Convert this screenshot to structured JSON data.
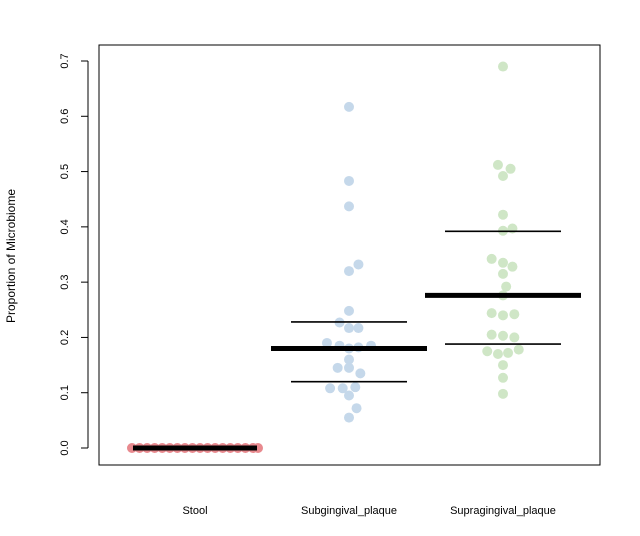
{
  "chart_data": {
    "type": "scatter",
    "subtype": "beeswarm with median and quartile lines",
    "title": "",
    "xlabel": "",
    "ylabel": "Proportion of Microbiome",
    "ylim": [
      -0.02,
      0.72
    ],
    "yticks": [
      0.0,
      0.1,
      0.2,
      0.3,
      0.4,
      0.5,
      0.6,
      0.7
    ],
    "ytick_labels": [
      "0.0",
      "0.1",
      "0.2",
      "0.3",
      "0.4",
      "0.5",
      "0.6",
      "0.7"
    ],
    "categories": [
      "Stool",
      "Subgingival_plaque",
      "Supragingival_plaque"
    ],
    "grid": false,
    "legend": "none",
    "colors": {
      "Stool": "#e8898e",
      "Subgingival_plaque": "#c5d8ea",
      "Supragingival_plaque": "#cfe6c6",
      "summary_lines": "#000000"
    },
    "series": [
      {
        "category": "Stool",
        "median": 0.0,
        "q1": 0.0,
        "q3": 0.0,
        "points": [
          {
            "y": 0.0,
            "offset": -1.0
          },
          {
            "y": 0.0,
            "offset": -0.88
          },
          {
            "y": 0.0,
            "offset": -0.76
          },
          {
            "y": 0.0,
            "offset": -0.64
          },
          {
            "y": 0.0,
            "offset": -0.52
          },
          {
            "y": 0.0,
            "offset": -0.4
          },
          {
            "y": 0.0,
            "offset": -0.28
          },
          {
            "y": 0.0,
            "offset": -0.16
          },
          {
            "y": 0.0,
            "offset": -0.04
          },
          {
            "y": 0.0,
            "offset": 0.08
          },
          {
            "y": 0.0,
            "offset": 0.2
          },
          {
            "y": 0.0,
            "offset": 0.32
          },
          {
            "y": 0.0,
            "offset": 0.44
          },
          {
            "y": 0.0,
            "offset": 0.56
          },
          {
            "y": 0.0,
            "offset": 0.68
          },
          {
            "y": 0.0,
            "offset": 0.8
          },
          {
            "y": 0.0,
            "offset": 0.92
          },
          {
            "y": 0.0,
            "offset": 1.0
          }
        ]
      },
      {
        "category": "Subgingival_plaque",
        "median": 0.18,
        "q1": 0.12,
        "q3": 0.228,
        "points": [
          {
            "y": 0.617,
            "offset": 0.0
          },
          {
            "y": 0.483,
            "offset": 0.0
          },
          {
            "y": 0.437,
            "offset": 0.0
          },
          {
            "y": 0.332,
            "offset": 0.15
          },
          {
            "y": 0.32,
            "offset": 0.0
          },
          {
            "y": 0.248,
            "offset": 0.0
          },
          {
            "y": 0.227,
            "offset": -0.15
          },
          {
            "y": 0.217,
            "offset": 0.0
          },
          {
            "y": 0.217,
            "offset": 0.15
          },
          {
            "y": 0.19,
            "offset": -0.35
          },
          {
            "y": 0.185,
            "offset": -0.15
          },
          {
            "y": 0.185,
            "offset": 0.35
          },
          {
            "y": 0.182,
            "offset": 0.15
          },
          {
            "y": 0.18,
            "offset": 0.0
          },
          {
            "y": 0.16,
            "offset": 0.0
          },
          {
            "y": 0.145,
            "offset": -0.18
          },
          {
            "y": 0.145,
            "offset": 0.0
          },
          {
            "y": 0.135,
            "offset": 0.18
          },
          {
            "y": 0.108,
            "offset": -0.3
          },
          {
            "y": 0.108,
            "offset": -0.1
          },
          {
            "y": 0.11,
            "offset": 0.1
          },
          {
            "y": 0.095,
            "offset": 0.0
          },
          {
            "y": 0.072,
            "offset": 0.12
          },
          {
            "y": 0.055,
            "offset": 0.0
          }
        ]
      },
      {
        "category": "Supragingival_plaque",
        "median": 0.276,
        "q1": 0.188,
        "q3": 0.392,
        "points": [
          {
            "y": 0.69,
            "offset": 0.0
          },
          {
            "y": 0.512,
            "offset": -0.08
          },
          {
            "y": 0.505,
            "offset": 0.12
          },
          {
            "y": 0.492,
            "offset": 0.0
          },
          {
            "y": 0.422,
            "offset": 0.0
          },
          {
            "y": 0.397,
            "offset": 0.15
          },
          {
            "y": 0.393,
            "offset": 0.0
          },
          {
            "y": 0.342,
            "offset": -0.18
          },
          {
            "y": 0.335,
            "offset": 0.0
          },
          {
            "y": 0.328,
            "offset": 0.15
          },
          {
            "y": 0.315,
            "offset": 0.0
          },
          {
            "y": 0.292,
            "offset": 0.05
          },
          {
            "y": 0.276,
            "offset": 0.0
          },
          {
            "y": 0.244,
            "offset": -0.18
          },
          {
            "y": 0.24,
            "offset": 0.0
          },
          {
            "y": 0.242,
            "offset": 0.18
          },
          {
            "y": 0.205,
            "offset": -0.18
          },
          {
            "y": 0.203,
            "offset": 0.0
          },
          {
            "y": 0.2,
            "offset": 0.18
          },
          {
            "y": 0.175,
            "offset": -0.25
          },
          {
            "y": 0.17,
            "offset": -0.08
          },
          {
            "y": 0.172,
            "offset": 0.08
          },
          {
            "y": 0.178,
            "offset": 0.25
          },
          {
            "y": 0.15,
            "offset": 0.0
          },
          {
            "y": 0.127,
            "offset": 0.0
          },
          {
            "y": 0.098,
            "offset": 0.0
          }
        ]
      }
    ]
  }
}
